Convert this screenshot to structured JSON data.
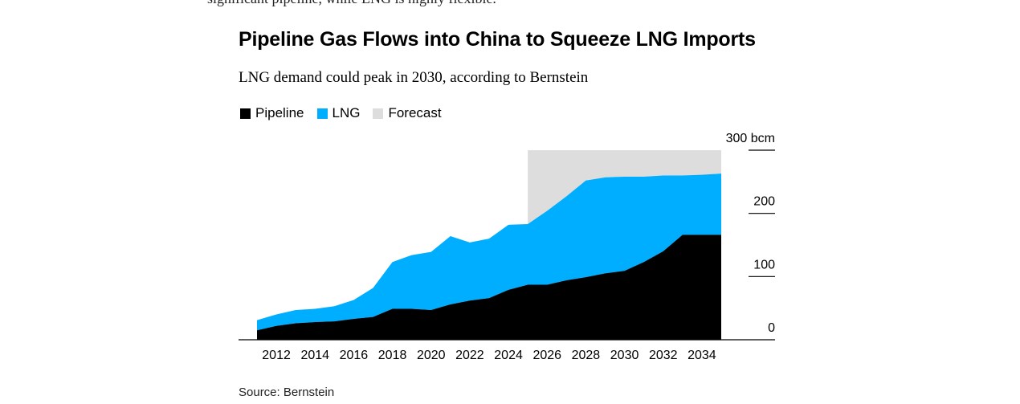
{
  "header": {
    "cutoff_text": "significant pipeline, while LNG is highly flexible.",
    "title": "Pipeline Gas Flows into China to Squeeze LNG Imports",
    "subtitle": "LNG demand could peak in 2030, according to Bernstein"
  },
  "legend": [
    {
      "label": "Pipeline",
      "color": "#000000"
    },
    {
      "label": "LNG",
      "color": "#00aeff"
    },
    {
      "label": "Forecast",
      "color": "#dddddd"
    }
  ],
  "source": "Source: Bernstein",
  "chart_data": {
    "type": "area",
    "stacked": true,
    "title": "Pipeline Gas Flows into China to Squeeze LNG Imports",
    "subtitle": "LNG demand could peak in 2030, according to Bernstein",
    "x": [
      2011,
      2012,
      2013,
      2014,
      2015,
      2016,
      2017,
      2018,
      2019,
      2020,
      2021,
      2022,
      2023,
      2024,
      2025,
      2026,
      2027,
      2028,
      2029,
      2030,
      2031,
      2032,
      2033,
      2034,
      2035
    ],
    "series": [
      {
        "name": "Pipeline",
        "color": "#000000",
        "values": [
          15,
          22,
          26,
          28,
          29,
          33,
          36,
          49,
          49,
          47,
          56,
          62,
          66,
          79,
          87,
          87,
          94,
          99,
          105,
          109,
          123,
          140,
          166,
          166,
          166
        ]
      },
      {
        "name": "LNG",
        "color": "#00aeff",
        "values": [
          16,
          18,
          21,
          21,
          24,
          30,
          46,
          74,
          85,
          92,
          108,
          92,
          94,
          103,
          96,
          117,
          133,
          153,
          152,
          149,
          135,
          120,
          94,
          95,
          97
        ]
      }
    ],
    "forecast": {
      "label": "Forecast",
      "start": 2025,
      "end": 2035,
      "top": 300,
      "color": "#dddddd"
    },
    "y_ticks": [
      {
        "value": 0,
        "label": "0"
      },
      {
        "value": 100,
        "label": "100"
      },
      {
        "value": 200,
        "label": "200"
      },
      {
        "value": 300,
        "label": "300 bcm"
      }
    ],
    "x_ticks": [
      {
        "value": 2012,
        "label": "2012"
      },
      {
        "value": 2014,
        "label": "2014"
      },
      {
        "value": 2016,
        "label": "2016"
      },
      {
        "value": 2018,
        "label": "2018"
      },
      {
        "value": 2020,
        "label": "2020"
      },
      {
        "value": 2022,
        "label": "2022"
      },
      {
        "value": 2024,
        "label": "2024"
      },
      {
        "value": 2026,
        "label": "2026"
      },
      {
        "value": 2028,
        "label": "2028"
      },
      {
        "value": 2030,
        "label": "2030"
      },
      {
        "value": 2032,
        "label": "2032"
      },
      {
        "value": 2034,
        "label": "2034"
      }
    ],
    "xlim": [
      2011,
      2035
    ],
    "ylim": [
      0,
      300
    ],
    "xlabel": "",
    "ylabel": "bcm"
  }
}
